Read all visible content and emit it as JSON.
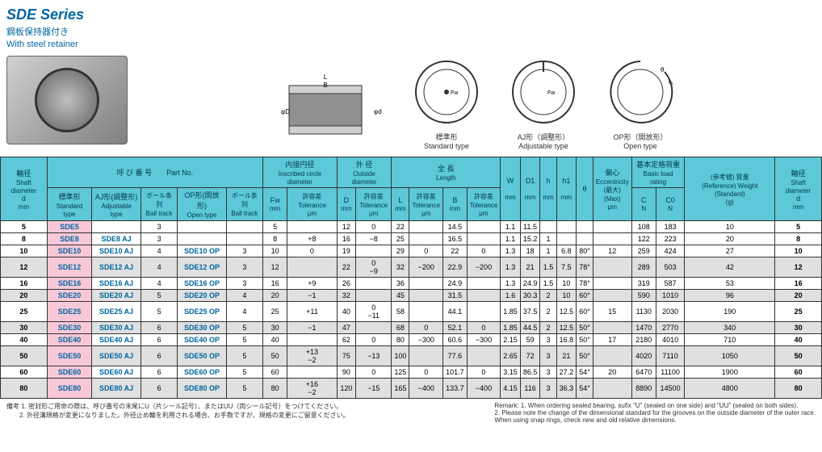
{
  "header": {
    "title": "SDE Series",
    "subtitle1": "鋼板保持器付き",
    "subtitle2": "With steel retainer"
  },
  "diagrams": {
    "standard": {
      "jp": "標準形",
      "en": "Standard type"
    },
    "adjustable": {
      "jp": "AJ形（調整形）",
      "en": "Adjustable type"
    },
    "open": {
      "jp": "OP形（開放形）",
      "en": "Open type"
    }
  },
  "table": {
    "headers": {
      "shaft_dia": {
        "jp": "軸径",
        "en": "Shaft diameter",
        "sym": "d",
        "unit": "mm"
      },
      "part_no": {
        "jp": "呼 び 番 号",
        "en": "Part No."
      },
      "standard": {
        "jp": "標準形",
        "en": "Standard type"
      },
      "adjustable": {
        "jp": "AJ形(調整形)",
        "en": "Adjustable type"
      },
      "ball_track": {
        "jp": "ボール条列",
        "en": "Ball track"
      },
      "open": {
        "jp": "OP形(開放形)",
        "en": "Open type"
      },
      "inscribed": {
        "jp": "内接円径",
        "en": "Inscribed circle diameter"
      },
      "outside": {
        "jp": "外    径",
        "en": "Outside diameter"
      },
      "length": {
        "jp": "全    長",
        "en": "Length"
      },
      "fw": "Fw",
      "d_cap": "D",
      "l_cap": "L",
      "b_cap": "B",
      "w_cap": "W",
      "d1": "D1",
      "h": "h",
      "h1": "h1",
      "theta": "θ",
      "tolerance": {
        "jp": "許容差",
        "en": "Tolerance"
      },
      "eccentricity": {
        "jp": "偏心",
        "en": "Eccentricity",
        "sub": "(最大)",
        "sub_en": "(Max)"
      },
      "load": {
        "jp": "基本定格荷重",
        "en": "Basic load rating"
      },
      "c": "C",
      "c0": "C0",
      "weight": {
        "jp": "(参考値)\n質量",
        "en": "(Reference)\nWeight\n(Standard)"
      },
      "unit_mm": "mm",
      "unit_um": "μm",
      "unit_n": "N",
      "unit_g": "(g)"
    },
    "rows": [
      {
        "d": "5",
        "std": "SDE5",
        "adj": "",
        "bt1": "3",
        "op": "",
        "bt2": "",
        "fw": "5",
        "fw_tol": "",
        "D": "12",
        "D_tol": "0",
        "L": "22",
        "L_tol": "",
        "B": "14.5",
        "B_tol": "",
        "W": "1.1",
        "D1": "11.5",
        "h": "",
        "h1": "",
        "theta": "",
        "ecc": "",
        "C": "108",
        "C0": "183",
        "wt": "10",
        "d2": "5"
      },
      {
        "d": "8",
        "std": "SDE8",
        "adj": "SDE8  AJ",
        "bt1": "3",
        "op": "",
        "bt2": "",
        "fw": "8",
        "fw_tol": "+8",
        "D": "16",
        "D_tol": "−8",
        "L": "25",
        "L_tol": "",
        "B": "16.5",
        "B_tol": "",
        "W": "1.1",
        "D1": "15.2",
        "h": "1",
        "h1": "",
        "theta": "",
        "ecc": "",
        "C": "122",
        "C0": "223",
        "wt": "20",
        "d2": "8"
      },
      {
        "d": "10",
        "std": "SDE10",
        "adj": "SDE10 AJ",
        "bt1": "4",
        "op": "SDE10 OP",
        "bt2": "3",
        "fw": "10",
        "fw_tol": "0",
        "D": "19",
        "D_tol": "",
        "L": "29",
        "L_tol": "0",
        "B": "22",
        "B_tol": "0",
        "W": "1.3",
        "D1": "18",
        "h": "1",
        "h1": "6.8",
        "theta": "80°",
        "ecc": "12",
        "C": "259",
        "C0": "424",
        "wt": "27",
        "d2": "10"
      },
      {
        "d": "12",
        "std": "SDE12",
        "adj": "SDE12 AJ",
        "bt1": "4",
        "op": "SDE12 OP",
        "bt2": "3",
        "fw": "12",
        "fw_tol": "",
        "D": "22",
        "D_tol": "0\n−9",
        "L": "32",
        "L_tol": "−200",
        "B": "22.9",
        "B_tol": "−200",
        "W": "1.3",
        "D1": "21",
        "h": "1.5",
        "h1": "7.5",
        "theta": "78°",
        "ecc": "",
        "C": "289",
        "C0": "503",
        "wt": "42",
        "d2": "12"
      },
      {
        "d": "16",
        "std": "SDE16",
        "adj": "SDE16 AJ",
        "bt1": "4",
        "op": "SDE16 OP",
        "bt2": "3",
        "fw": "16",
        "fw_tol": "+9",
        "D": "26",
        "D_tol": "",
        "L": "36",
        "L_tol": "",
        "B": "24.9",
        "B_tol": "",
        "W": "1.3",
        "D1": "24.9",
        "h": "1.5",
        "h1": "10",
        "theta": "78°",
        "ecc": "",
        "C": "319",
        "C0": "587",
        "wt": "53",
        "d2": "16"
      },
      {
        "d": "20",
        "std": "SDE20",
        "adj": "SDE20 AJ",
        "bt1": "5",
        "op": "SDE20 OP",
        "bt2": "4",
        "fw": "20",
        "fw_tol": "−1",
        "D": "32",
        "D_tol": "",
        "L": "45",
        "L_tol": "",
        "B": "31.5",
        "B_tol": "",
        "W": "1.6",
        "D1": "30.3",
        "h": "2",
        "h1": "10",
        "theta": "60°",
        "ecc": "",
        "C": "590",
        "C0": "1010",
        "wt": "96",
        "d2": "20"
      },
      {
        "d": "25",
        "std": "SDE25",
        "adj": "SDE25 AJ",
        "bt1": "5",
        "op": "SDE25 OP",
        "bt2": "4",
        "fw": "25",
        "fw_tol": "+11",
        "D": "40",
        "D_tol": "0\n−11",
        "L": "58",
        "L_tol": "",
        "B": "44.1",
        "B_tol": "",
        "W": "1.85",
        "D1": "37.5",
        "h": "2",
        "h1": "12.5",
        "theta": "60°",
        "ecc": "15",
        "C": "1130",
        "C0": "2030",
        "wt": "190",
        "d2": "25"
      },
      {
        "d": "30",
        "std": "SDE30",
        "adj": "SDE30 AJ",
        "bt1": "6",
        "op": "SDE30 OP",
        "bt2": "5",
        "fw": "30",
        "fw_tol": "−1",
        "D": "47",
        "D_tol": "",
        "L": "68",
        "L_tol": "0",
        "B": "52.1",
        "B_tol": "0",
        "W": "1.85",
        "D1": "44.5",
        "h": "2",
        "h1": "12.5",
        "theta": "50°",
        "ecc": "",
        "C": "1470",
        "C0": "2770",
        "wt": "340",
        "d2": "30"
      },
      {
        "d": "40",
        "std": "SDE40",
        "adj": "SDE40 AJ",
        "bt1": "6",
        "op": "SDE40 OP",
        "bt2": "5",
        "fw": "40",
        "fw_tol": "",
        "D": "62",
        "D_tol": "0",
        "L": "80",
        "L_tol": "−300",
        "B": "60.6",
        "B_tol": "−300",
        "W": "2.15",
        "D1": "59",
        "h": "3",
        "h1": "16.8",
        "theta": "50°",
        "ecc": "17",
        "C": "2180",
        "C0": "4010",
        "wt": "710",
        "d2": "40"
      },
      {
        "d": "50",
        "std": "SDE50",
        "adj": "SDE50 AJ",
        "bt1": "6",
        "op": "SDE50 OP",
        "bt2": "5",
        "fw": "50",
        "fw_tol": "+13\n−2",
        "D": "75",
        "D_tol": "−13",
        "L": "100",
        "L_tol": "",
        "B": "77.6",
        "B_tol": "",
        "W": "2.65",
        "D1": "72",
        "h": "3",
        "h1": "21",
        "theta": "50°",
        "ecc": "",
        "C": "4020",
        "C0": "7110",
        "wt": "1050",
        "d2": "50"
      },
      {
        "d": "60",
        "std": "SDE60",
        "adj": "SDE60 AJ",
        "bt1": "6",
        "op": "SDE60 OP",
        "bt2": "5",
        "fw": "60",
        "fw_tol": "",
        "D": "90",
        "D_tol": "0",
        "L": "125",
        "L_tol": "0",
        "B": "101.7",
        "B_tol": "0",
        "W": "3.15",
        "D1": "86.5",
        "h": "3",
        "h1": "27.2",
        "theta": "54°",
        "ecc": "20",
        "C": "6470",
        "C0": "11100",
        "wt": "1900",
        "d2": "60"
      },
      {
        "d": "80",
        "std": "SDE80",
        "adj": "SDE80 AJ",
        "bt1": "6",
        "op": "SDE80 OP",
        "bt2": "5",
        "fw": "80",
        "fw_tol": "+16\n−2",
        "D": "120",
        "D_tol": "−15",
        "L": "165",
        "L_tol": "−400",
        "B": "133.7",
        "B_tol": "−400",
        "W": "4.15",
        "D1": "116",
        "h": "3",
        "h1": "36.3",
        "theta": "54°",
        "ecc": "",
        "C": "8890",
        "C0": "14500",
        "wt": "4800",
        "d2": "80"
      }
    ]
  },
  "remarks": {
    "jp_label": "備考",
    "jp1": "1. 密封形ご用命の際は、呼び番号の末尾にU（片シール記号）、またはUU（両シール記号）をつけてください。",
    "jp2": "2. 外径溝規格が変更になりました。外径止め輪を利用される場合、お手数ですが、規格の変更にご留意ください。",
    "en_label": "Remark:",
    "en1": "1. When ordering sealed bearing, sufix \"U\" (sealed on one side) and \"UU\" (sealed on both sides).",
    "en2": "2. Please note the change of the dimensional standard for the grooves on the outside diameter of the outer race.",
    "en3": "When using snap rings, check new and old relative dimensions."
  }
}
